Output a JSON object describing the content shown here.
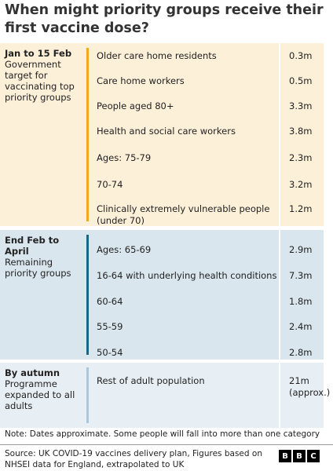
{
  "header": {
    "title": "When might priority groups receive their first vaccine dose?"
  },
  "groups": [
    {
      "period": "Jan to 15 Feb",
      "description": "Government target for vaccinating top priority groups",
      "rows": [
        {
          "label": "Older care home residents",
          "value": "0.3m"
        },
        {
          "label": "Care home workers",
          "value": "0.5m"
        },
        {
          "label": "People aged 80+",
          "value": "3.3m"
        },
        {
          "label": "Health and social care workers",
          "value": "3.8m"
        },
        {
          "label": "Ages: 75-79",
          "value": "2.3m"
        },
        {
          "label": "70-74",
          "value": "3.2m"
        },
        {
          "label": "Clinically extremely vulnerable people (under 70)",
          "value": "1.2m"
        }
      ]
    },
    {
      "period": "End Feb to April",
      "description": "Remaining priority groups",
      "rows": [
        {
          "label": "Ages: 65-69",
          "value": "2.9m"
        },
        {
          "label": "16-64 with underlying health conditions",
          "value": "7.3m"
        },
        {
          "label": "60-64",
          "value": "1.8m"
        },
        {
          "label": "55-59",
          "value": "2.4m"
        },
        {
          "label": "50-54",
          "value": "2.8m"
        }
      ]
    },
    {
      "period": "By autumn",
      "description": "Programme expanded to all adults",
      "rows": [
        {
          "label": "Rest of adult population",
          "value": "21m (approx.)"
        }
      ]
    }
  ],
  "footer": {
    "note": "Note: Dates approximate. Some people will fall into more than one category",
    "source": "Source: UK COVID-19 vaccines delivery plan, Figures based on NHSEI data for England, extrapolated to UK",
    "logo": "BBC"
  }
}
